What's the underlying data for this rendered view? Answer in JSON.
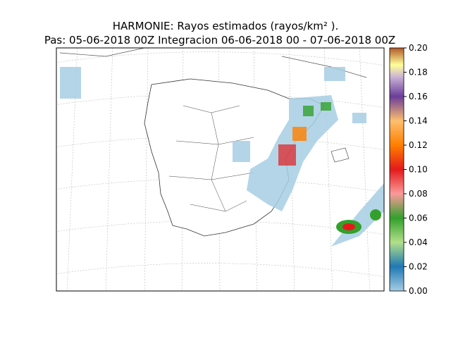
{
  "map": {
    "title": "HARMONIE: Rayos estimados  (rayos/km² ).",
    "subtitle": "Pas: 05-06-2018 00Z Integracion 06-06-2018 00 - 07-06-2018 00Z",
    "colorbar": {
      "lim": [
        0,
        0.2
      ],
      "ticks": [
        {
          "value": 0,
          "label": "0.00"
        },
        {
          "value": 0.02,
          "label": "0.02"
        },
        {
          "value": 0.04,
          "label": "0.04"
        },
        {
          "value": 0.06,
          "label": "0.06"
        },
        {
          "value": 0.08,
          "label": "0.08"
        },
        {
          "value": 0.1,
          "label": "0.10"
        },
        {
          "value": 0.12,
          "label": "0.12"
        },
        {
          "value": 0.14,
          "label": "0.14"
        },
        {
          "value": 0.16,
          "label": "0.16"
        },
        {
          "value": 0.18,
          "label": "0.18"
        },
        {
          "value": 0.2,
          "label": "0.20"
        }
      ]
    }
  }
}
